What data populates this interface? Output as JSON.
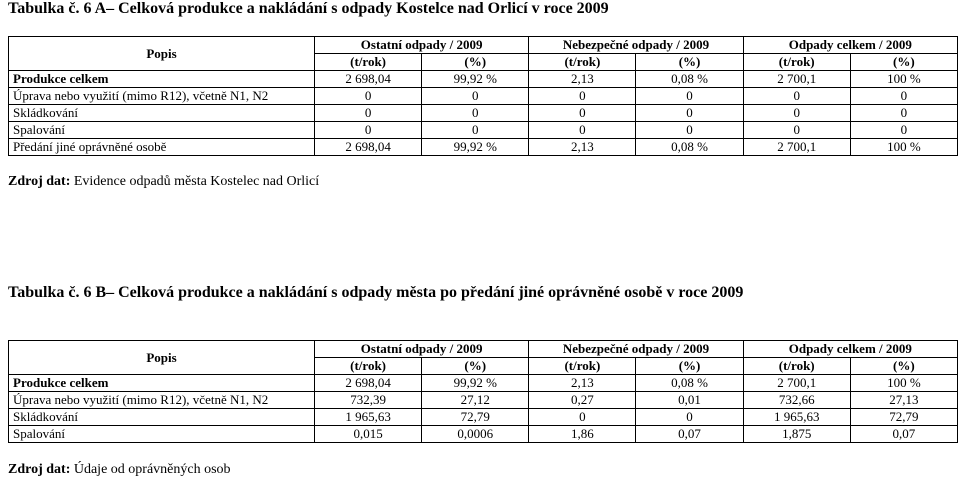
{
  "table_a": {
    "caption": "Tabulka č. 6 A– Celková produkce a nakládání s odpady Kostelce nad Orlicí v roce 2009",
    "group_headers": [
      "Popis",
      "Ostatní odpady / 2009",
      "Nebezpečné odpady / 2009",
      "Odpady celkem / 2009"
    ],
    "unit_headers": [
      "(t/rok)",
      "(%)",
      "(t/rok)",
      "(%)",
      "(t/rok)",
      "(%)"
    ],
    "rows": [
      {
        "label": "Produkce celkem",
        "cells": [
          "2 698,04",
          "99,92 %",
          "2,13",
          "0,08 %",
          "2 700,1",
          "100 %"
        ]
      },
      {
        "label": "Úprava nebo využití (mimo R12), včetně N1, N2",
        "cells": [
          "0",
          "0",
          "0",
          "0",
          "0",
          "0"
        ]
      },
      {
        "label": "Skládkování",
        "cells": [
          "0",
          "0",
          "0",
          "0",
          "0",
          "0"
        ]
      },
      {
        "label": "Spalování",
        "cells": [
          "0",
          "0",
          "0",
          "0",
          "0",
          "0"
        ]
      },
      {
        "label": "Předání jiné oprávněné osobě",
        "cells": [
          "2 698,04",
          "99,92 %",
          "2,13",
          "0,08 %",
          "2 700,1",
          "100 %"
        ]
      }
    ],
    "source_label": "Zdroj dat:",
    "source_text": " Evidence odpadů města Kostelec nad Orlicí"
  },
  "table_b": {
    "caption": "Tabulka č. 6 B– Celková produkce a nakládání s odpady města po předání jiné oprávněné osobě v roce 2009",
    "group_headers": [
      "Popis",
      "Ostatní odpady / 2009",
      "Nebezpečné odpady / 2009",
      "Odpady celkem / 2009"
    ],
    "unit_headers": [
      "(t/rok)",
      "(%)",
      "(t/rok)",
      "(%)",
      "(t/rok)",
      "(%)"
    ],
    "rows": [
      {
        "label": "Produkce celkem",
        "cells": [
          "2 698,04",
          "99,92 %",
          "2,13",
          "0,08 %",
          "2 700,1",
          "100 %"
        ]
      },
      {
        "label": "Úprava nebo využití (mimo R12), včetně N1, N2",
        "cells": [
          "732,39",
          "27,12",
          "0,27",
          "0,01",
          "732,66",
          "27,13"
        ]
      },
      {
        "label": "Skládkování",
        "cells": [
          "1 965,63",
          "72,79",
          "0",
          "0",
          "1 965,63",
          "72,79"
        ]
      },
      {
        "label": "Spalování",
        "cells": [
          "0,015",
          "0,0006",
          "1,86",
          "0,07",
          "1,875",
          "0,07"
        ]
      }
    ],
    "source_label": "Zdroj dat:",
    "source_text": " Údaje od oprávněných osob"
  }
}
